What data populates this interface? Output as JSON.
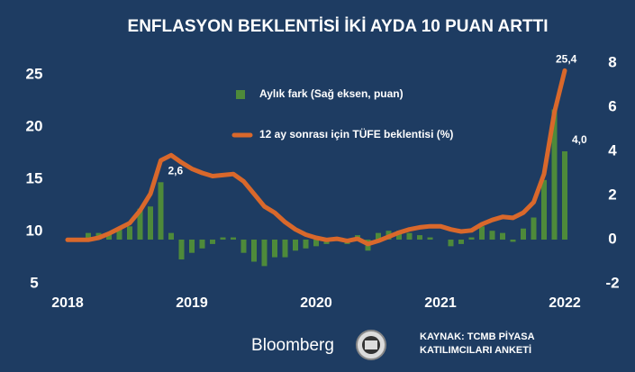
{
  "chart_data": {
    "type": "bar_line",
    "title": "ENFLASYON BEKLENTİSİ İKİ AYDA 10 PUAN ARTTI",
    "categories": [
      "2018",
      null,
      null,
      null,
      null,
      null,
      null,
      null,
      null,
      null,
      null,
      null,
      "2019",
      null,
      null,
      null,
      null,
      null,
      null,
      null,
      null,
      null,
      null,
      null,
      "2020",
      null,
      null,
      null,
      null,
      null,
      null,
      null,
      null,
      null,
      null,
      null,
      "2021",
      null,
      null,
      null,
      null,
      null,
      null,
      null,
      null,
      null,
      null,
      null,
      "2022"
    ],
    "series": [
      {
        "name": "Aylık fark (Sağ eksen, puan)",
        "color": "#4e8a3a",
        "axis": "y2",
        "kind": "bar",
        "values": [
          0,
          0,
          0.3,
          0.3,
          0.3,
          0.5,
          0.6,
          1.4,
          1.5,
          2.6,
          0.3,
          -0.9,
          -0.6,
          -0.4,
          -0.2,
          0.1,
          0.1,
          -0.6,
          -1.0,
          -1.2,
          -0.8,
          -0.8,
          -0.5,
          -0.4,
          -0.3,
          -0.2,
          0.1,
          -0.2,
          0.2,
          -0.5,
          0.3,
          0.4,
          0.4,
          0.3,
          0.2,
          0.1,
          0,
          -0.3,
          -0.2,
          0.1,
          0.6,
          0.4,
          0.3,
          -0.1,
          0.5,
          1.0,
          2.7,
          5.9,
          4.0
        ],
        "value_labels": [
          null,
          null,
          null,
          null,
          null,
          null,
          null,
          null,
          null,
          "2,6",
          null,
          null,
          null,
          null,
          null,
          null,
          null,
          null,
          null,
          null,
          null,
          null,
          null,
          null,
          null,
          null,
          null,
          null,
          null,
          null,
          null,
          null,
          null,
          null,
          null,
          null,
          null,
          null,
          null,
          null,
          null,
          null,
          null,
          null,
          null,
          null,
          null,
          null,
          "4,0"
        ]
      },
      {
        "name": "12 ay sonrası için TÜFE beklentisi (%)",
        "color": "#d9682b",
        "kind": "line",
        "values": [
          9.2,
          9.2,
          9.2,
          9.4,
          9.8,
          10.3,
          10.8,
          12.0,
          13.6,
          16.8,
          17.3,
          16.6,
          16.0,
          15.6,
          15.3,
          15.4,
          15.5,
          14.8,
          13.6,
          12.4,
          11.8,
          10.9,
          10.2,
          9.7,
          9.4,
          9.2,
          9.3,
          9.1,
          9.3,
          8.8,
          9.1,
          9.5,
          9.9,
          10.2,
          10.4,
          10.5,
          10.5,
          10.2,
          10.0,
          10.1,
          10.7,
          11.1,
          11.4,
          11.3,
          11.8,
          12.8,
          15.5,
          21.4,
          25.4
        ],
        "value_labels": [
          null,
          null,
          null,
          null,
          null,
          null,
          null,
          null,
          null,
          null,
          null,
          null,
          null,
          null,
          null,
          null,
          null,
          null,
          null,
          null,
          null,
          null,
          null,
          null,
          null,
          null,
          null,
          null,
          null,
          null,
          null,
          null,
          null,
          null,
          null,
          null,
          null,
          null,
          null,
          null,
          null,
          null,
          null,
          null,
          null,
          null,
          null,
          null,
          "25,4"
        ]
      }
    ],
    "ylim": [
      5,
      25
    ],
    "yticks": [
      5,
      10,
      15,
      20,
      25
    ],
    "y2lim": [
      -2,
      8
    ],
    "y2ticks": [
      -2,
      0,
      2,
      4,
      6,
      8
    ],
    "grid": false,
    "background": "#1e3c62",
    "logo": "Bloomberg",
    "source": [
      "KAYNAK: TCMB PİYASA",
      "KATILIMCILARI ANKETİ"
    ]
  }
}
